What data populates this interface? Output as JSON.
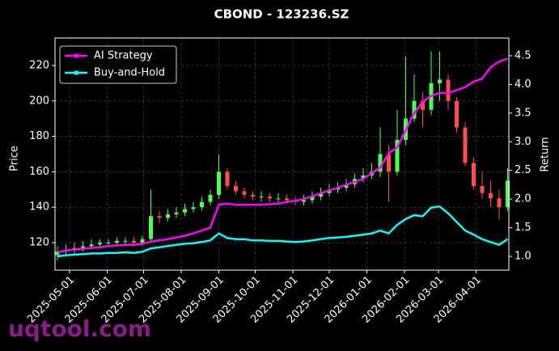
{
  "chart_data": {
    "type": "candlestick",
    "title": "CBOND - 123236.SZ",
    "ylabel": "Price",
    "y2label": "Return",
    "watermark": "uqtool.com",
    "x": [
      "2025-04-21",
      "2025-04-28",
      "2025-05-05",
      "2025-05-12",
      "2025-05-19",
      "2025-05-26",
      "2025-06-02",
      "2025-06-09",
      "2025-06-16",
      "2025-06-23",
      "2025-06-30",
      "2025-07-07",
      "2025-07-14",
      "2025-07-21",
      "2025-07-28",
      "2025-08-04",
      "2025-08-11",
      "2025-08-18",
      "2025-08-25",
      "2025-09-01",
      "2025-09-08",
      "2025-09-15",
      "2025-09-22",
      "2025-09-29",
      "2025-10-06",
      "2025-10-13",
      "2025-10-20",
      "2025-10-27",
      "2025-11-03",
      "2025-11-10",
      "2025-11-17",
      "2025-11-24",
      "2025-12-01",
      "2025-12-08",
      "2025-12-15",
      "2025-12-22",
      "2025-12-29",
      "2026-01-05",
      "2026-01-12",
      "2026-01-19",
      "2026-01-26",
      "2026-02-02",
      "2026-02-09",
      "2026-02-16",
      "2026-02-23",
      "2026-03-02",
      "2026-03-09",
      "2026-03-16",
      "2026-03-23",
      "2026-03-30",
      "2026-04-06",
      "2026-04-13",
      "2026-04-20",
      "2026-04-27"
    ],
    "open": [
      113,
      115,
      116,
      117,
      118,
      119,
      120,
      120,
      121,
      121,
      120,
      122,
      135,
      134,
      136,
      137,
      139,
      140,
      143,
      147,
      160,
      152,
      149,
      147,
      146,
      146,
      145,
      145,
      144,
      143,
      144,
      146,
      148,
      150,
      151,
      153,
      156,
      158,
      160,
      170,
      160,
      178,
      190,
      200,
      195,
      210,
      212,
      200,
      185,
      165,
      152,
      148,
      145,
      140
    ],
    "high": [
      118,
      119,
      120,
      121,
      122,
      122,
      122,
      123,
      123,
      123,
      124,
      150,
      138,
      139,
      140,
      142,
      143,
      146,
      150,
      170,
      162,
      155,
      151,
      149,
      149,
      148,
      148,
      147,
      146,
      147,
      149,
      151,
      153,
      154,
      156,
      159,
      162,
      165,
      185,
      175,
      195,
      225,
      215,
      205,
      228,
      228,
      215,
      202,
      188,
      168,
      160,
      155,
      150,
      162
    ],
    "low": [
      110,
      113,
      114,
      115,
      116,
      117,
      118,
      118,
      119,
      118,
      118,
      120,
      131,
      132,
      134,
      135,
      137,
      138,
      141,
      145,
      150,
      147,
      145,
      144,
      143,
      143,
      142,
      142,
      141,
      141,
      142,
      144,
      146,
      148,
      149,
      151,
      154,
      156,
      157,
      143,
      158,
      175,
      188,
      185,
      192,
      200,
      195,
      182,
      163,
      150,
      145,
      140,
      133,
      138
    ],
    "close": [
      115,
      116,
      117,
      118,
      119,
      120,
      120,
      121,
      121,
      120,
      122,
      135,
      134,
      136,
      137,
      139,
      140,
      143,
      147,
      160,
      152,
      149,
      147,
      146,
      146,
      145,
      145,
      144,
      143,
      144,
      146,
      148,
      150,
      151,
      153,
      156,
      158,
      160,
      170,
      160,
      178,
      190,
      200,
      195,
      210,
      212,
      200,
      185,
      165,
      152,
      148,
      145,
      140,
      155
    ],
    "up_color": "#4dff4d",
    "down_color": "#ff4d4d",
    "series": [
      {
        "name": "AI Strategy",
        "color": "#ff00ff",
        "axis": "y2",
        "values": [
          1.07,
          1.1,
          1.12,
          1.13,
          1.15,
          1.16,
          1.18,
          1.19,
          1.2,
          1.2,
          1.22,
          1.26,
          1.28,
          1.3,
          1.33,
          1.36,
          1.4,
          1.45,
          1.5,
          1.9,
          1.92,
          1.9,
          1.9,
          1.9,
          1.9,
          1.91,
          1.92,
          1.95,
          1.97,
          2.0,
          2.05,
          2.1,
          2.15,
          2.2,
          2.25,
          2.3,
          2.35,
          2.45,
          2.55,
          2.8,
          2.9,
          3.2,
          3.5,
          3.7,
          3.8,
          3.85,
          3.85,
          3.9,
          3.95,
          4.05,
          4.1,
          4.3,
          4.4,
          4.45
        ]
      },
      {
        "name": "Buy-and-Hold",
        "color": "#00ffff",
        "axis": "y2",
        "values": [
          1.0,
          1.02,
          1.03,
          1.04,
          1.05,
          1.05,
          1.06,
          1.06,
          1.07,
          1.06,
          1.08,
          1.14,
          1.16,
          1.18,
          1.2,
          1.22,
          1.23,
          1.25,
          1.28,
          1.4,
          1.32,
          1.3,
          1.3,
          1.28,
          1.28,
          1.27,
          1.27,
          1.26,
          1.25,
          1.26,
          1.28,
          1.3,
          1.32,
          1.33,
          1.34,
          1.36,
          1.38,
          1.4,
          1.45,
          1.4,
          1.55,
          1.65,
          1.72,
          1.7,
          1.85,
          1.87,
          1.75,
          1.6,
          1.45,
          1.38,
          1.3,
          1.25,
          1.2,
          1.3
        ]
      }
    ],
    "xlim": [
      "2025-04-19",
      "2026-04-28"
    ],
    "xticks": [
      "2025-05-01",
      "2025-06-01",
      "2025-07-01",
      "2025-08-01",
      "2025-09-01",
      "2025-10-01",
      "2025-11-01",
      "2025-12-01",
      "2026-01-01",
      "2026-02-01",
      "2026-03-01",
      "2026-04-01"
    ],
    "ylim": [
      104.5,
      235.5
    ],
    "yticks": [
      120,
      140,
      160,
      180,
      200,
      220
    ],
    "y2lim": [
      0.76,
      4.81
    ],
    "y2ticks": [
      {
        "value": 1,
        "label": "1.0"
      },
      {
        "value": 1.5,
        "label": "1.5"
      },
      {
        "value": 2,
        "label": "2.0"
      },
      {
        "value": 2.5,
        "label": "2.5"
      },
      {
        "value": 3,
        "label": "3.0"
      },
      {
        "value": 3.5,
        "label": "3.5"
      },
      {
        "value": 4,
        "label": "4.0"
      },
      {
        "value": 4.5,
        "label": "4.5"
      }
    ],
    "grid": true,
    "legend": "upper left"
  }
}
